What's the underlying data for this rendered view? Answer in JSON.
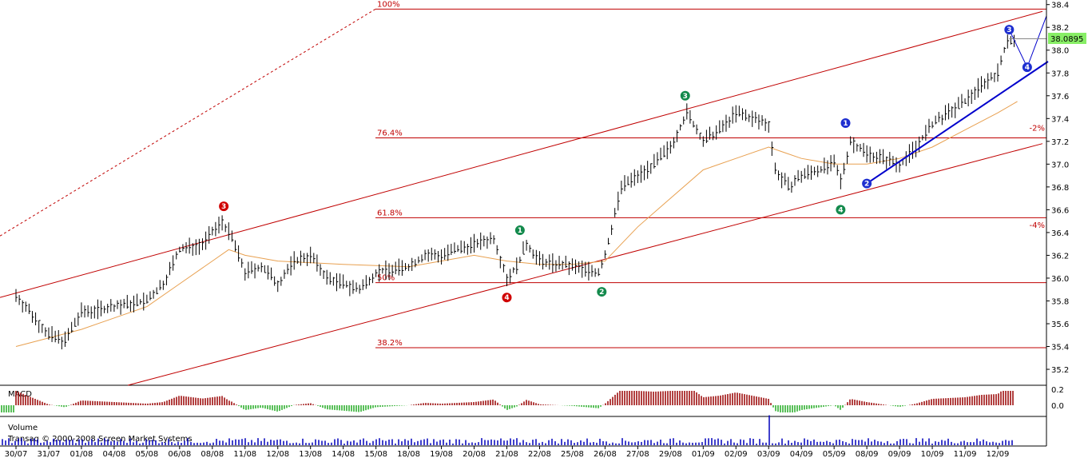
{
  "chart_data": {
    "type": "candlestick",
    "y_axis": {
      "ticks": [
        "38.4",
        "38.2",
        "38.0",
        "37.8",
        "37.6",
        "37.4",
        "37.2",
        "37.0",
        "36.8",
        "36.6",
        "36.4",
        "36.2",
        "36.0",
        "35.8",
        "35.6",
        "35.4",
        "35.2"
      ],
      "range": [
        35.06,
        38.44
      ]
    },
    "x_axis": {
      "ticks": [
        "30/07",
        "31/07",
        "01/08",
        "04/08",
        "05/08",
        "06/08",
        "08/08",
        "11/08",
        "12/08",
        "13/08",
        "14/08",
        "15/08",
        "18/08",
        "19/08",
        "20/08",
        "21/08",
        "22/08",
        "25/08",
        "26/08",
        "27/08",
        "29/08",
        "01/09",
        "02/09",
        "03/09",
        "04/09",
        "05/09",
        "08/09",
        "09/09",
        "10/09",
        "11/09",
        "12/09"
      ]
    },
    "last_price": "38.0895",
    "price_path": [
      [
        0,
        35.85
      ],
      [
        1,
        35.5
      ],
      [
        1.5,
        35.45
      ],
      [
        2,
        35.7
      ],
      [
        3,
        35.75
      ],
      [
        4,
        35.8
      ],
      [
        4.5,
        35.95
      ],
      [
        5,
        36.25
      ],
      [
        5.7,
        36.3
      ],
      [
        6.3,
        36.5
      ],
      [
        6.6,
        36.35
      ],
      [
        7,
        36.05
      ],
      [
        7.5,
        36.1
      ],
      [
        8,
        35.95
      ],
      [
        8.5,
        36.15
      ],
      [
        9,
        36.2
      ],
      [
        9.5,
        36.0
      ],
      [
        10,
        35.95
      ],
      [
        10.5,
        35.9
      ],
      [
        11,
        36.05
      ],
      [
        12,
        36.1
      ],
      [
        12.5,
        36.2
      ],
      [
        13,
        36.2
      ],
      [
        14,
        36.3
      ],
      [
        14.6,
        36.35
      ],
      [
        15,
        36.0
      ],
      [
        15.3,
        36.1
      ],
      [
        15.6,
        36.3
      ],
      [
        16,
        36.15
      ],
      [
        17,
        36.1
      ],
      [
        17.8,
        36.05
      ],
      [
        18,
        36.2
      ],
      [
        18.5,
        36.8
      ],
      [
        19,
        36.9
      ],
      [
        19.5,
        37.0
      ],
      [
        20,
        37.15
      ],
      [
        20.5,
        37.45
      ],
      [
        21,
        37.2
      ],
      [
        21.5,
        37.3
      ],
      [
        22,
        37.45
      ],
      [
        22.5,
        37.4
      ],
      [
        23,
        37.35
      ],
      [
        23.2,
        36.95
      ],
      [
        23.6,
        36.8
      ],
      [
        24,
        36.9
      ],
      [
        24.5,
        36.95
      ],
      [
        25,
        37.0
      ],
      [
        25.2,
        36.85
      ],
      [
        25.5,
        37.2
      ],
      [
        26,
        37.1
      ],
      [
        26.5,
        37.05
      ],
      [
        27,
        37.0
      ],
      [
        27.5,
        37.15
      ],
      [
        28,
        37.35
      ],
      [
        28.5,
        37.45
      ],
      [
        29,
        37.55
      ],
      [
        29.5,
        37.7
      ],
      [
        30,
        37.8
      ],
      [
        30.3,
        38.1
      ],
      [
        30.6,
        38.05
      ]
    ],
    "moving_average": [
      [
        0,
        35.4
      ],
      [
        2,
        35.55
      ],
      [
        4,
        35.75
      ],
      [
        5,
        35.95
      ],
      [
        6,
        36.15
      ],
      [
        6.5,
        36.25
      ],
      [
        7,
        36.2
      ],
      [
        8,
        36.15
      ],
      [
        10,
        36.12
      ],
      [
        12,
        36.1
      ],
      [
        14,
        36.2
      ],
      [
        15,
        36.15
      ],
      [
        16,
        36.12
      ],
      [
        17,
        36.12
      ],
      [
        18,
        36.15
      ],
      [
        18.5,
        36.3
      ],
      [
        19,
        36.45
      ],
      [
        20,
        36.7
      ],
      [
        21,
        36.95
      ],
      [
        22,
        37.05
      ],
      [
        23,
        37.15
      ],
      [
        23.5,
        37.1
      ],
      [
        24,
        37.05
      ],
      [
        25,
        37.0
      ],
      [
        26,
        37.0
      ],
      [
        27,
        37.05
      ],
      [
        28,
        37.15
      ],
      [
        29,
        37.3
      ],
      [
        30,
        37.45
      ],
      [
        30.6,
        37.55
      ]
    ],
    "fibonacci": [
      {
        "label": "100%",
        "value": 38.36
      },
      {
        "label": "76.4%",
        "value": 37.23
      },
      {
        "label": "61.8%",
        "value": 36.53
      },
      {
        "label": "50%",
        "value": 35.96
      },
      {
        "label": "38.2%",
        "value": 35.39
      }
    ],
    "side_labels": [
      {
        "label": "-2%",
        "value": 37.32
      },
      {
        "label": "-4%",
        "value": 36.47
      }
    ],
    "wave_markers": [
      {
        "label": "3",
        "color": "#d00000",
        "x": 6.35,
        "y": 36.63
      },
      {
        "label": "4",
        "color": "#d00000",
        "x": 15.0,
        "y": 35.83
      },
      {
        "label": "1",
        "color": "#138a4c",
        "x": 15.4,
        "y": 36.42
      },
      {
        "label": "2",
        "color": "#138a4c",
        "x": 17.9,
        "y": 35.88
      },
      {
        "label": "3",
        "color": "#138a4c",
        "x": 20.45,
        "y": 37.6
      },
      {
        "label": "4",
        "color": "#138a4c",
        "x": 25.2,
        "y": 36.6
      },
      {
        "label": "1",
        "color": "#1e2fd0",
        "x": 25.35,
        "y": 37.36
      },
      {
        "label": "2",
        "color": "#1e2fd0",
        "x": 26.0,
        "y": 36.83
      },
      {
        "label": "3",
        "color": "#1e2fd0",
        "x": 30.35,
        "y": 38.18
      },
      {
        "label": "4",
        "color": "#1e2fd0",
        "x": 30.9,
        "y": 37.85
      }
    ]
  },
  "macd_panel": {
    "label": "MACD",
    "ticks": [
      "0.2",
      "0.0"
    ]
  },
  "volume_panel": {
    "label": "Volume",
    "copyright": "Transaq © 2000-2008 Screen Market Systems"
  },
  "colors": {
    "channel": "#c00000",
    "wave_trend": "#0000cc",
    "moving_average": "#e8a050",
    "last_price_bg": "#88ee66",
    "macd_pos": "#990000",
    "macd_neg": "#22aa22",
    "volume": "#0000bb"
  }
}
